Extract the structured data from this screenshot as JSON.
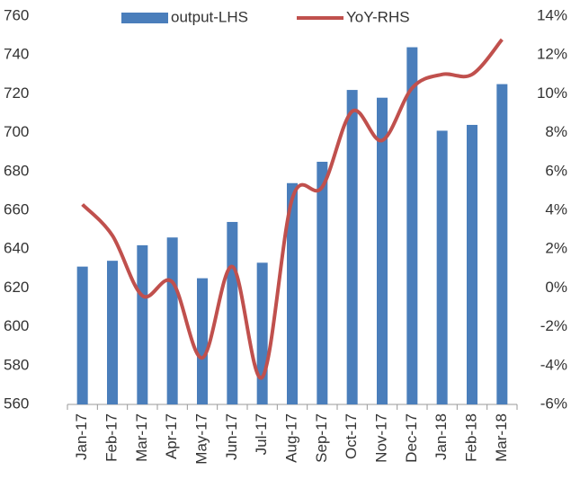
{
  "chart_data": {
    "type": "bar-line",
    "categories": [
      "Jan-17",
      "Feb-17",
      "Mar-17",
      "Apr-17",
      "May-17",
      "Jun-17",
      "Jul-17",
      "Aug-17",
      "Sep-17",
      "Oct-17",
      "Nov-17",
      "Dec-17",
      "Jan-18",
      "Feb-18",
      "Mar-18"
    ],
    "series": [
      {
        "name": "output-LHS",
        "color": "#4a7ebb",
        "type": "bar",
        "values": [
          631,
          634,
          642,
          646,
          625,
          654,
          633,
          674,
          685,
          722,
          718,
          744,
          701,
          704,
          725
        ]
      },
      {
        "name": "YoY-RHS",
        "color": "#c0504d",
        "type": "line",
        "axis": "y2",
        "values": [
          4.3,
          2.7,
          -0.4,
          0.3,
          -3.6,
          1.1,
          -4.6,
          4.6,
          5.2,
          9.1,
          7.6,
          10.3,
          11.0,
          11.0,
          12.8
        ]
      }
    ],
    "ylim": [
      560,
      760
    ],
    "yticks": [
      560,
      580,
      600,
      620,
      640,
      660,
      680,
      700,
      720,
      740,
      760
    ],
    "y2lim": [
      -6,
      14
    ],
    "y2ticks": [
      {
        "value": -6,
        "label": "-6%"
      },
      {
        "value": -4,
        "label": "-4%"
      },
      {
        "value": -2,
        "label": "-2%"
      },
      {
        "value": 0,
        "label": "0%"
      },
      {
        "value": 2,
        "label": "2%"
      },
      {
        "value": 4,
        "label": "4%"
      },
      {
        "value": 6,
        "label": "6%"
      },
      {
        "value": 8,
        "label": "8%"
      },
      {
        "value": 10,
        "label": "10%"
      },
      {
        "value": 12,
        "label": "12%"
      },
      {
        "value": 14,
        "label": "14%"
      }
    ],
    "legend": "top"
  }
}
